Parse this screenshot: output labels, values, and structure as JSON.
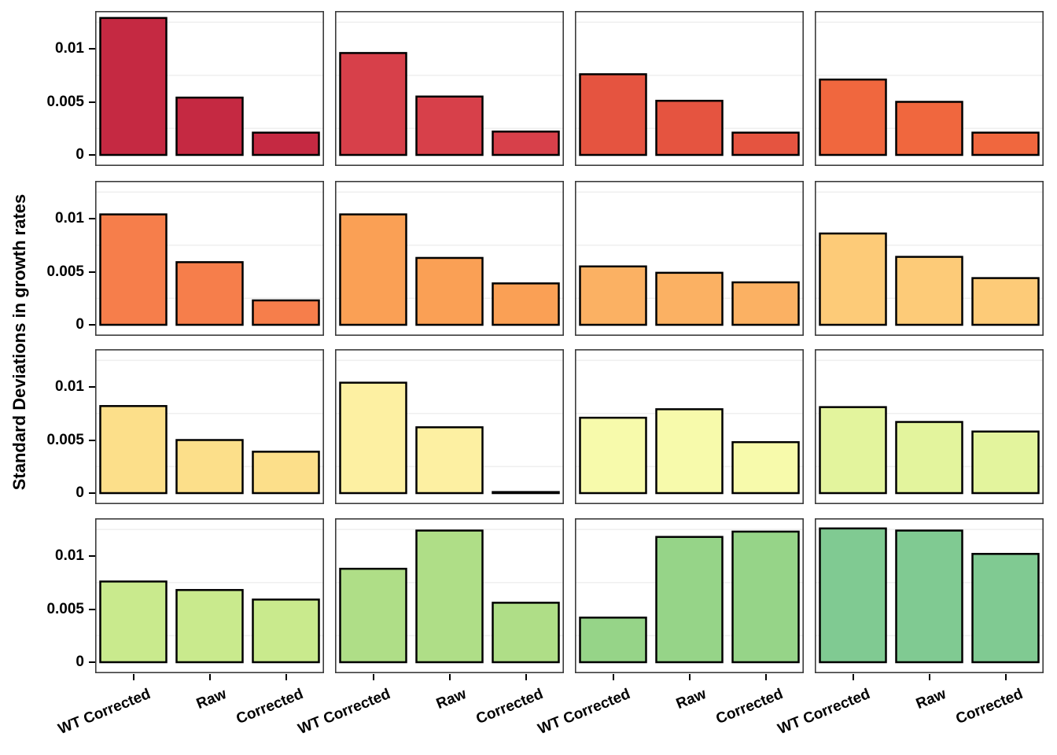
{
  "figure": {
    "ylabel": "Standard Deviations in growth rates",
    "y_ticks": [
      {
        "label": "0",
        "value": 0
      },
      {
        "label": "0.005",
        "value": 0.005
      },
      {
        "label": "0.01",
        "value": 0.01
      }
    ],
    "minor_gridlines": [
      0.0025,
      0.0075,
      0.0125
    ],
    "colors": {
      "bar_stroke": "#000000",
      "panel_border": "#3c3c3c",
      "gridline": "#efefef",
      "text": "#000000",
      "background": "#ffffff"
    }
  },
  "chart_data": {
    "type": "bar",
    "title": "",
    "xlabel": "",
    "ylabel": "Standard Deviations in growth rates",
    "layout_hint": "4x4 facet grid, shared axes, minor gridlines only, no legend",
    "categories": [
      "WT Corrected",
      "Raw",
      "Corrected"
    ],
    "ylim": [
      0,
      0.01355
    ],
    "panels": [
      {
        "row": 1,
        "col": 1,
        "fill": "#C52942",
        "values": [
          0.0129,
          0.0054,
          0.0021
        ]
      },
      {
        "row": 1,
        "col": 2,
        "fill": "#D7404A",
        "values": [
          0.0096,
          0.0055,
          0.0022
        ]
      },
      {
        "row": 1,
        "col": 3,
        "fill": "#E55440",
        "values": [
          0.0076,
          0.0051,
          0.0021
        ]
      },
      {
        "row": 1,
        "col": 4,
        "fill": "#F0673E",
        "values": [
          0.0071,
          0.005,
          0.0021
        ]
      },
      {
        "row": 2,
        "col": 1,
        "fill": "#F67E4B",
        "values": [
          0.0104,
          0.0059,
          0.0023
        ]
      },
      {
        "row": 2,
        "col": 2,
        "fill": "#FAA055",
        "values": [
          0.0104,
          0.0063,
          0.0039
        ]
      },
      {
        "row": 2,
        "col": 3,
        "fill": "#FBB163",
        "values": [
          0.0055,
          0.0049,
          0.004
        ]
      },
      {
        "row": 2,
        "col": 4,
        "fill": "#FDCB78",
        "values": [
          0.0086,
          0.0064,
          0.0044
        ]
      },
      {
        "row": 3,
        "col": 1,
        "fill": "#FCDF8A",
        "values": [
          0.0082,
          0.005,
          0.0039
        ]
      },
      {
        "row": 3,
        "col": 2,
        "fill": "#FDF0A2",
        "values": [
          0.0104,
          0.0062,
          0.0001
        ]
      },
      {
        "row": 3,
        "col": 3,
        "fill": "#F7FAAB",
        "values": [
          0.0071,
          0.0079,
          0.0048
        ]
      },
      {
        "row": 3,
        "col": 4,
        "fill": "#E3F49D",
        "values": [
          0.0081,
          0.0067,
          0.0058
        ]
      },
      {
        "row": 4,
        "col": 1,
        "fill": "#C9EA8D",
        "values": [
          0.0076,
          0.0068,
          0.0059
        ]
      },
      {
        "row": 4,
        "col": 2,
        "fill": "#AFDE87",
        "values": [
          0.0088,
          0.0124,
          0.0056
        ]
      },
      {
        "row": 4,
        "col": 3,
        "fill": "#96D488",
        "values": [
          0.0042,
          0.0118,
          0.0123
        ]
      },
      {
        "row": 4,
        "col": 4,
        "fill": "#80CA92",
        "values": [
          0.0126,
          0.0124,
          0.0102
        ]
      }
    ]
  }
}
